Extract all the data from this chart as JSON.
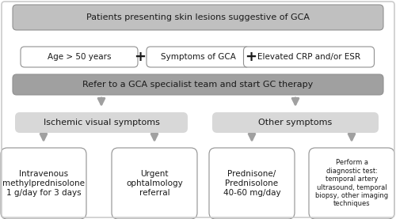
{
  "title": "Patients presenting skin lesions suggestive of GCA",
  "row1_boxes": [
    "Age > 50 years",
    "Symptoms of GCA",
    "Elevated CRP and/or ESR"
  ],
  "row2_text": "Refer to a GCA specialist team and start GC therapy",
  "row3_boxes": [
    "Ischemic visual symptoms",
    "Other symptoms"
  ],
  "row4_boxes": [
    "Intravenous\nmethylprednisolone\n1 g/day for 3 days",
    "Urgent\nophtalmology\nreferral",
    "Prednisone/\nPrednisolone\n40-60 mg/day",
    "Perform a\ndiagnostic test:\ntemporal artery\nultrasound, temporal\nbiopsy, other imaging\ntechniques"
  ],
  "bg_color_dark": "#a0a0a0",
  "bg_color_mid": "#c0c0c0",
  "bg_color_light": "#d8d8d8",
  "box_fill_white": "#ffffff",
  "border_color": "#909090",
  "text_color": "#1a1a1a",
  "arrow_color": "#a0a0a0",
  "fig_bg": "#ffffff",
  "outer_border": "#cccccc"
}
